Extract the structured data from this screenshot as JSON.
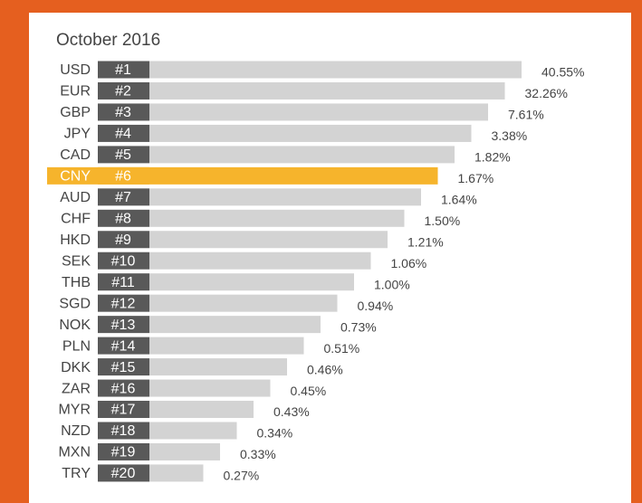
{
  "title": "October 2016",
  "highlight_color": "#f6b42c",
  "bar_color": "#d3d3d3",
  "rank_color": "#595959",
  "highlight": "CNY",
  "rows": [
    {
      "code": "USD",
      "rank": "#1",
      "share": "40.55%"
    },
    {
      "code": "EUR",
      "rank": "#2",
      "share": "32.26%"
    },
    {
      "code": "GBP",
      "rank": "#3",
      "share": "7.61%"
    },
    {
      "code": "JPY",
      "rank": "#4",
      "share": "3.38%"
    },
    {
      "code": "CAD",
      "rank": "#5",
      "share": "1.82%"
    },
    {
      "code": "CNY",
      "rank": "#6",
      "share": "1.67%"
    },
    {
      "code": "AUD",
      "rank": "#7",
      "share": "1.64%"
    },
    {
      "code": "CHF",
      "rank": "#8",
      "share": "1.50%"
    },
    {
      "code": "HKD",
      "rank": "#9",
      "share": "1.21%"
    },
    {
      "code": "SEK",
      "rank": "#10",
      "share": "1.06%"
    },
    {
      "code": "THB",
      "rank": "#11",
      "share": "1.00%"
    },
    {
      "code": "SGD",
      "rank": "#12",
      "share": "0.94%"
    },
    {
      "code": "NOK",
      "rank": "#13",
      "share": "0.73%"
    },
    {
      "code": "PLN",
      "rank": "#14",
      "share": "0.51%"
    },
    {
      "code": "DKK",
      "rank": "#15",
      "share": "0.46%"
    },
    {
      "code": "ZAR",
      "rank": "#16",
      "share": "0.45%"
    },
    {
      "code": "MYR",
      "rank": "#17",
      "share": "0.43%"
    },
    {
      "code": "NZD",
      "rank": "#18",
      "share": "0.34%"
    },
    {
      "code": "MXN",
      "rank": "#19",
      "share": "0.33%"
    },
    {
      "code": "TRY",
      "rank": "#20",
      "share": "0.27%"
    }
  ]
}
